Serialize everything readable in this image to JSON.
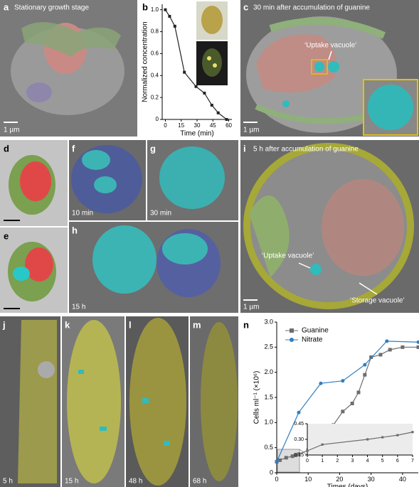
{
  "panels": {
    "a": {
      "letter": "a",
      "caption": "Stationary growth stage",
      "scale_bar": "1 µm"
    },
    "c": {
      "letter": "c",
      "caption": "30 min after accumulation of guanine",
      "annotation": "‘Uptake vacuole’",
      "scale_bar": "1 µm"
    },
    "d": {
      "letter": "d"
    },
    "e": {
      "letter": "e"
    },
    "f": {
      "letter": "f",
      "caption": "10 min"
    },
    "g": {
      "letter": "g",
      "caption": "30 min"
    },
    "h": {
      "letter": "h",
      "caption": "15 h"
    },
    "i": {
      "letter": "i",
      "caption": "5 h after accumulation of guanine",
      "annotations": [
        "‘Uptake vacuole’",
        "‘Storage vacuole’"
      ],
      "scale_bar": "1 µm"
    },
    "j": {
      "letter": "j",
      "caption": "5 h"
    },
    "k": {
      "letter": "k",
      "caption": "15 h"
    },
    "l": {
      "letter": "l",
      "caption": "48 h"
    },
    "m": {
      "letter": "m",
      "caption": "68 h"
    }
  },
  "chart_data": [
    {
      "type": "line",
      "panel_label": "b",
      "xlabel": "Time (min)",
      "ylabel": "Normalized concentration",
      "x": [
        0,
        4,
        9,
        18,
        29,
        37,
        44,
        50,
        58
      ],
      "series": [
        {
          "color": "#222222",
          "marker": "square",
          "values": [
            1.0,
            0.94,
            0.85,
            0.43,
            0.3,
            0.24,
            0.13,
            0.06,
            0.0
          ]
        }
      ],
      "xlim": [
        -3,
        63
      ],
      "ylim": [
        0,
        1.05
      ],
      "xticks": [
        0,
        15,
        30,
        45,
        60
      ],
      "yticks": [
        0,
        0.2,
        0.4,
        0.6,
        0.8,
        {
          "value": 1,
          "label": "1.0"
        }
      ]
    },
    {
      "type": "line",
      "panel_label": "n",
      "xlabel": "Times (days)",
      "ylabel": "Cells ml⁻¹ (×10⁶)",
      "legend": "upper left",
      "series": [
        {
          "name": "Guanine",
          "color": "#6d6d6d",
          "marker": "square",
          "x": [
            0,
            1,
            3,
            5,
            6,
            7,
            10,
            12,
            14,
            16,
            18,
            21,
            24,
            26,
            28,
            30,
            33,
            36,
            40,
            45
          ],
          "values": [
            0.22,
            0.25,
            0.3,
            0.33,
            0.35,
            0.37,
            0.45,
            0.55,
            0.72,
            0.82,
            0.95,
            1.22,
            1.38,
            1.6,
            1.95,
            2.3,
            2.35,
            2.45,
            2.5,
            2.5
          ]
        },
        {
          "name": "Nitrate",
          "color": "#2f7fc1",
          "marker": "circle",
          "x": [
            0,
            7,
            14,
            21,
            28,
            35,
            45
          ],
          "values": [
            0.22,
            1.2,
            1.78,
            1.83,
            2.15,
            2.62,
            2.6
          ]
        }
      ],
      "xlim": [
        0,
        45
      ],
      "ylim": [
        0,
        3
      ],
      "xticks": [
        0,
        10,
        20,
        30,
        40
      ],
      "yticks": [
        0,
        0.5,
        {
          "value": 1,
          "label": "1.0"
        },
        1.5,
        {
          "value": 2,
          "label": "2.0"
        },
        2.5,
        {
          "value": 3,
          "label": "3.0"
        }
      ]
    },
    {
      "type": "line",
      "series": [
        {
          "color": "#6d6d6d",
          "marker": "square",
          "x": [
            0,
            1,
            4,
            5,
            6,
            7
          ],
          "values": [
            0.19,
            0.25,
            0.3,
            0.32,
            0.34,
            0.37
          ]
        }
      ],
      "xlim": [
        0,
        7
      ],
      "ylim": [
        0.15,
        0.45
      ],
      "xticks": [
        0,
        1,
        2,
        3,
        4,
        5,
        6,
        7
      ],
      "yticks": [
        0.15,
        {
          "value": 0.3,
          "label": "0.30"
        },
        0.45
      ]
    }
  ]
}
